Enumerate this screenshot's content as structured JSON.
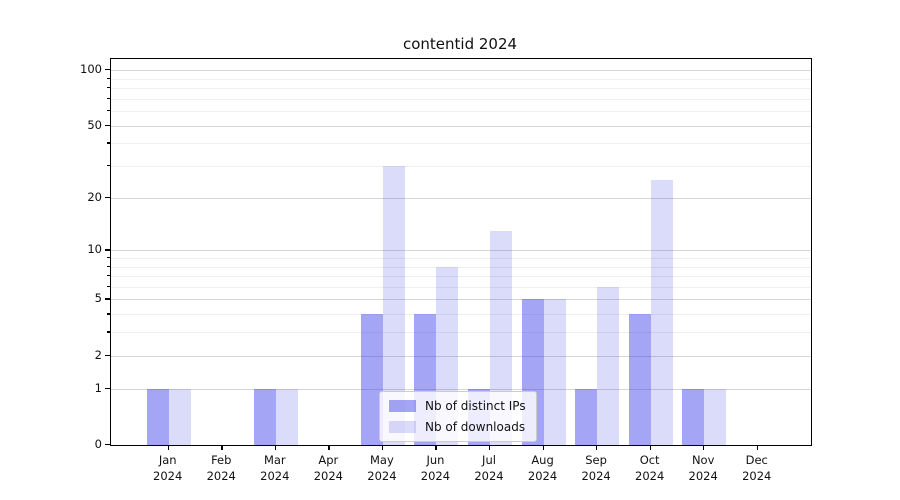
{
  "chart_data": {
    "type": "bar",
    "title": "contentid 2024",
    "categories": [
      "Jan",
      "Feb",
      "Mar",
      "Apr",
      "May",
      "Jun",
      "Jul",
      "Aug",
      "Sep",
      "Oct",
      "Nov",
      "Dec"
    ],
    "category_year": "2024",
    "series": [
      {
        "name": "Nb of distinct IPs",
        "color": "rgba(55,55,232,0.45)",
        "values": [
          1,
          0,
          1,
          0,
          4,
          4,
          1,
          5,
          1,
          4,
          1,
          0
        ]
      },
      {
        "name": "Nb of downloads",
        "color": "rgba(55,55,227,0.18)",
        "values": [
          1,
          0,
          1,
          0,
          30,
          8,
          13,
          5,
          6,
          25,
          1,
          0
        ]
      }
    ],
    "y_axis": {
      "scale": "log1p",
      "major_ticks": [
        0,
        1,
        2,
        5,
        10,
        20,
        50,
        100
      ],
      "minor_ticks": [
        3,
        4,
        6,
        7,
        8,
        9,
        30,
        40,
        60,
        70,
        80,
        90
      ],
      "range_max": 118
    },
    "xlabel": "",
    "ylabel": "",
    "grid": true,
    "legend_position": "bottom-center"
  },
  "colors": {
    "grid_major": "#d6d6d6",
    "grid_minor": "#efefef",
    "spine": "#000000",
    "background": "#ffffff",
    "legend_border": "#cccccc"
  }
}
